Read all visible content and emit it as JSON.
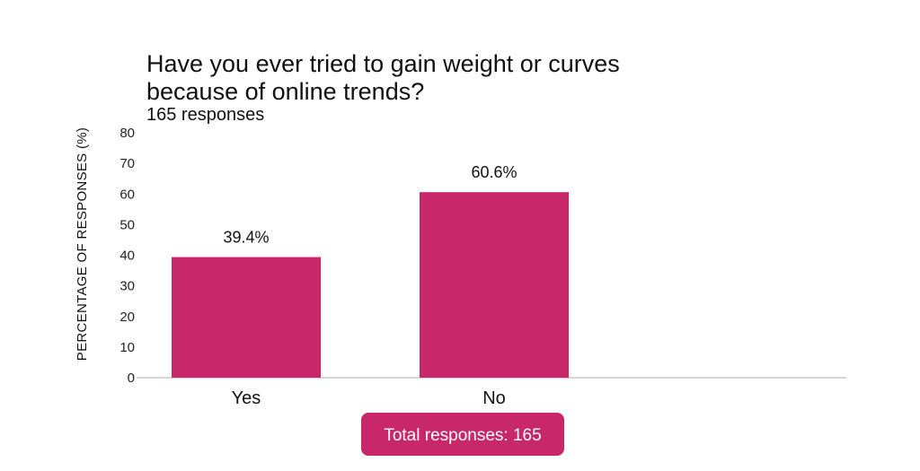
{
  "chart_data": {
    "type": "bar",
    "title_lines": [
      "Have you ever tried to gain weight or curves",
      "because of online trends?"
    ],
    "subtitle": "165 responses",
    "ylabel": "PERCENTAGE OF RESPONSES (%)",
    "xlabel": "",
    "categories": [
      "Yes",
      "No"
    ],
    "values": [
      39.4,
      60.6
    ],
    "data_labels": [
      "39.4%",
      "60.6%"
    ],
    "ylim": [
      0,
      80
    ],
    "yticks": [
      0,
      10,
      20,
      30,
      40,
      50,
      60,
      70,
      80
    ],
    "grid": false,
    "bar_color": "#c8276a"
  },
  "footer": {
    "total_label": "Total responses: 165",
    "badge_color": "#c8276a"
  }
}
